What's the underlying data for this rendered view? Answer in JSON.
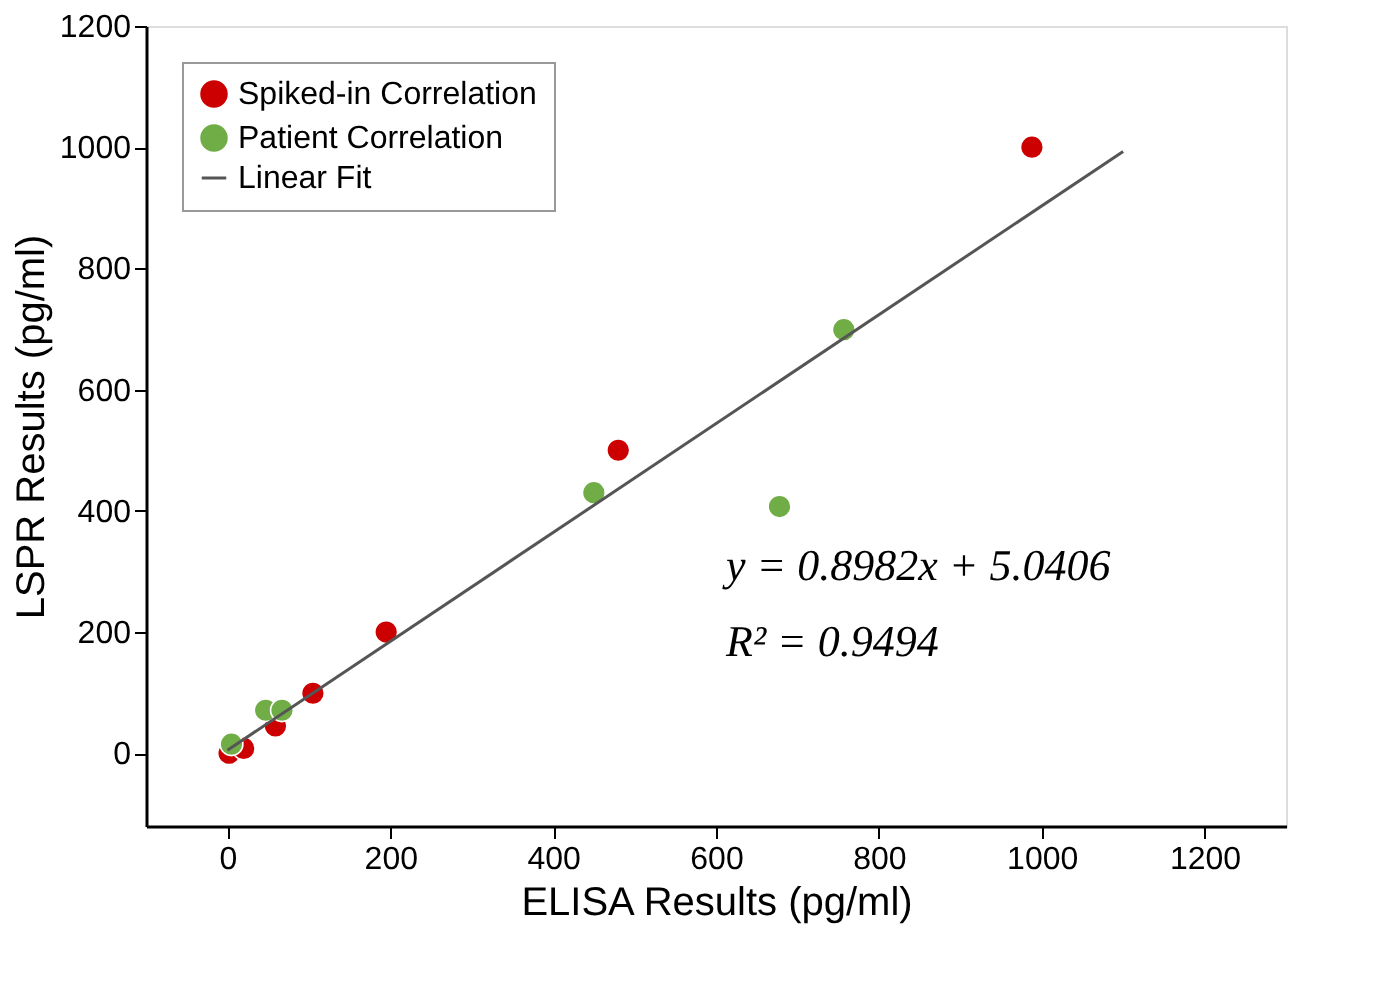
{
  "chart_data": {
    "type": "scatter",
    "xlabel": "ELISA Results (pg/ml)",
    "ylabel": "LSPR Results (pg/ml)",
    "xlim": [
      -100,
      1300
    ],
    "xticks": [
      0,
      200,
      400,
      600,
      800,
      1000,
      1200
    ],
    "ylim": [
      -120,
      1200
    ],
    "yticks": [
      0,
      200,
      400,
      600,
      800,
      1000,
      1200
    ],
    "grid": false,
    "legend": "top left",
    "marker": "circle",
    "series": [
      {
        "name": "Spiked-in Correlation",
        "color": "#cc0000",
        "x": [
          2,
          20,
          59,
          105,
          195,
          480,
          988
        ],
        "values": [
          0,
          8,
          45,
          99,
          200,
          500,
          1000
        ]
      },
      {
        "name": "Patient Correlation",
        "color": "#70ad47",
        "x": [
          5,
          47,
          67,
          450,
          678,
          757
        ],
        "values": [
          15,
          71,
          71,
          430,
          407,
          699
        ]
      },
      {
        "name": "Linear Fit",
        "type": "line",
        "color": "#555555",
        "line_style": "solid",
        "marker": "none",
        "x": [
          0,
          1100
        ],
        "values": [
          5,
          993
        ]
      }
    ],
    "annotations": [
      "y = 0.8982x + 5.0406",
      "R² = 0.9494"
    ]
  }
}
